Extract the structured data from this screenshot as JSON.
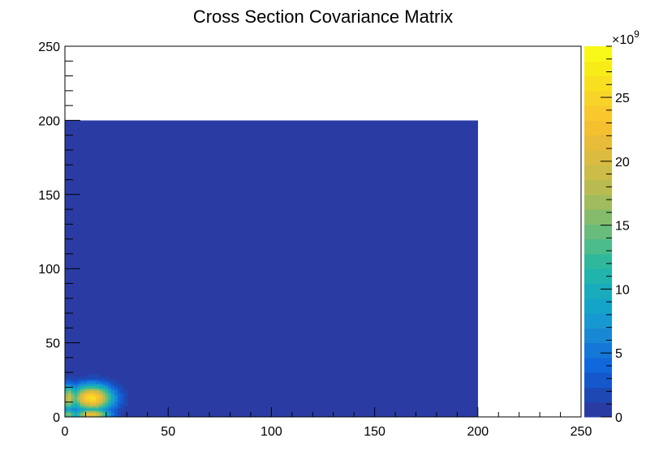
{
  "chart_data": {
    "type": "heatmap",
    "title": "Cross Section Covariance Matrix",
    "xlabel": "",
    "ylabel": "",
    "xlim": [
      0,
      250
    ],
    "ylim": [
      0,
      250
    ],
    "x_ticks": [
      0,
      50,
      100,
      150,
      200,
      250
    ],
    "y_ticks": [
      0,
      50,
      100,
      150,
      200,
      250
    ],
    "x_tick_labels": [
      "0",
      "50",
      "100",
      "150",
      "200",
      "250"
    ],
    "y_tick_labels": [
      "0",
      "50",
      "100",
      "150",
      "200",
      "250"
    ],
    "histogram_range": {
      "x": [
        0,
        200
      ],
      "y": [
        0,
        200
      ]
    },
    "background_value": 0,
    "hotspots": [
      {
        "x": 13,
        "y": 13,
        "peak": 26000000000.0,
        "sigma_x": 7,
        "sigma_y": 6
      },
      {
        "x": 13,
        "y": 2,
        "peak": 22000000000.0,
        "sigma_x": 6,
        "sigma_y": 2.5
      },
      {
        "x": 2,
        "y": 13,
        "peak": 20000000000.0,
        "sigma_x": 2.5,
        "sigma_y": 6
      },
      {
        "x": 2,
        "y": 2,
        "peak": 16000000000.0,
        "sigma_x": 2.5,
        "sigma_y": 2.5
      }
    ],
    "colorbar": {
      "min": 0,
      "max": 29000000000,
      "exponent_label": "×10",
      "exponent": "9",
      "ticks": [
        0,
        5,
        10,
        15,
        20,
        25
      ],
      "tick_labels": [
        "0",
        "5",
        "10",
        "15",
        "20",
        "25"
      ],
      "palette": [
        "#2a3ca4",
        "#1e48b4",
        "#1458cc",
        "#1068dc",
        "#1478d8",
        "#1888d4",
        "#1898d0",
        "#14a4c8",
        "#18acbc",
        "#20b4ac",
        "#30b89c",
        "#4cbc8c",
        "#68bc7c",
        "#84bc6c",
        "#a0bc5c",
        "#b8bc50",
        "#ccbc48",
        "#dcbc40",
        "#e8bc38",
        "#f4c030",
        "#f8c82c",
        "#f8d428",
        "#f8e020",
        "#f8ec18",
        "#f8f818"
      ]
    },
    "grid": false,
    "legend": "none"
  }
}
